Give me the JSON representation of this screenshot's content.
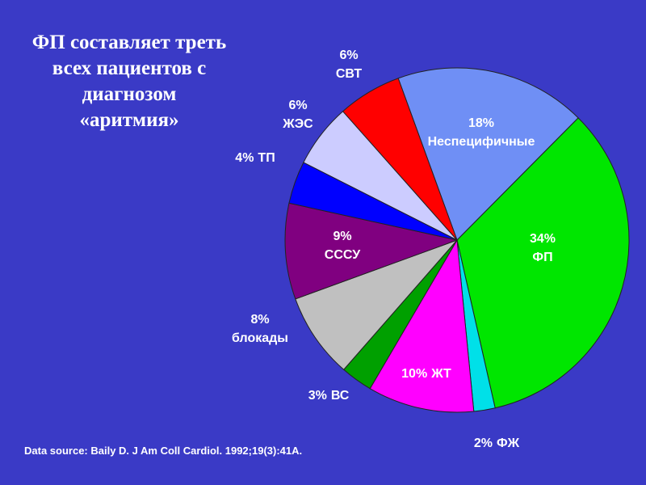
{
  "chart_data": {
    "type": "pie",
    "title_lines": [
      "ФП составляет треть",
      "всех пациентов с",
      "диагнозом",
      "«аритмия»"
    ],
    "categories": [
      "Неспецифичные",
      "ФП",
      "ФЖ",
      "ЖТ",
      "ВС",
      "блокады",
      "СССУ",
      "ТП",
      "ЖЭС",
      "СВТ"
    ],
    "values": [
      18,
      34,
      2,
      10,
      3,
      8,
      9,
      4,
      6,
      6
    ],
    "value_labels": [
      "18%",
      "34%",
      "2%",
      "10%",
      "3%",
      "8%",
      "9%",
      "4%",
      "6%",
      "6%"
    ],
    "colors": [
      "#6f8ff5",
      "#00e600",
      "#00e0e8",
      "#ff00ff",
      "#00a000",
      "#c0c0c0",
      "#800080",
      "#0000ff",
      "#ccccff",
      "#ff0000"
    ],
    "source": "Data source: Baily D. J Am Coll Cardiol. 1992;19(3):41A."
  }
}
